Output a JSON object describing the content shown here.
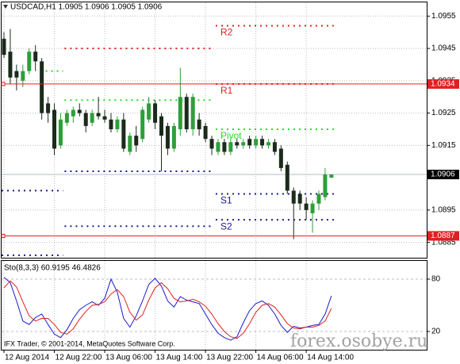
{
  "chart_data": [
    {
      "type": "candlestick",
      "title": "USDCAD,H1  1.0905 1.0906 1.0905 1.0906",
      "categories": [
        "12 Aug 2014",
        null,
        null,
        null,
        null,
        null,
        null,
        null,
        "12 Aug 22:00",
        null,
        null,
        null,
        null,
        null,
        null,
        null,
        "13 Aug 06:00",
        null,
        null,
        null,
        null,
        null,
        null,
        null,
        "13 Aug 14:00",
        null,
        null,
        null,
        null,
        null,
        null,
        null,
        "13 Aug 22:00",
        null,
        null,
        null,
        null,
        null,
        null,
        null,
        "14 Aug 06:00",
        null,
        null,
        null,
        null,
        null,
        null,
        null,
        "14 Aug 14:00",
        null,
        null,
        null,
        null
      ],
      "open": [
        1.0948,
        1.0944,
        1.0938,
        1.0935,
        1.0938,
        1.0944,
        1.0941,
        1.0928,
        1.0926,
        1.0915,
        1.0922,
        1.0924,
        1.0926,
        1.0925,
        1.0922,
        1.0925,
        1.0924,
        1.0923,
        1.092,
        1.0923,
        1.0913,
        1.0918,
        1.0917,
        1.0923,
        1.0928,
        1.0924,
        1.0921,
        1.0914,
        1.092,
        1.093,
        1.092,
        1.0923,
        1.0921,
        1.0917,
        1.0913,
        1.0916,
        1.0913,
        1.0916,
        1.0915,
        1.0917,
        1.0915,
        1.0917,
        1.0915,
        1.0916,
        1.0914,
        1.0909,
        1.0901,
        1.09,
        1.0897,
        1.0894,
        1.0897,
        1.0899,
        1.0905
      ],
      "high": [
        1.095,
        1.0951,
        1.094,
        1.094,
        1.0945,
        1.0946,
        1.0942,
        1.093,
        1.0928,
        1.0925,
        1.0926,
        1.0927,
        1.0928,
        1.0926,
        1.0926,
        1.093,
        1.0926,
        1.0925,
        1.0924,
        1.0925,
        1.0919,
        1.0921,
        1.0927,
        1.093,
        1.0929,
        1.0925,
        1.0922,
        1.0922,
        1.0939,
        1.0931,
        1.0931,
        1.0925,
        1.0922,
        1.0918,
        1.0917,
        1.0917,
        1.0917,
        1.0917,
        1.0917,
        1.0918,
        1.0918,
        1.0918,
        1.0917,
        1.0917,
        1.0915,
        1.091,
        1.0902,
        1.0901,
        1.0899,
        1.0898,
        1.0901,
        1.0908,
        1.0906
      ],
      "low": [
        1.0942,
        1.0934,
        1.0932,
        1.0933,
        1.0937,
        1.0938,
        1.0923,
        1.0922,
        1.0912,
        1.0914,
        1.0921,
        1.0922,
        1.0924,
        1.0919,
        1.0921,
        1.0923,
        1.0922,
        1.0919,
        1.0919,
        1.0913,
        1.0912,
        1.0913,
        1.0916,
        1.0922,
        1.092,
        1.0907,
        1.0912,
        1.0913,
        1.0918,
        1.0919,
        1.0918,
        1.0918,
        1.0916,
        1.0912,
        1.0912,
        1.0912,
        1.0912,
        1.0914,
        1.0914,
        1.0914,
        1.0914,
        1.0914,
        1.0914,
        1.0912,
        1.0907,
        1.09,
        1.0886,
        1.0895,
        1.0892,
        1.0888,
        1.0895,
        1.0898,
        1.0905
      ],
      "close": [
        1.0943,
        1.0936,
        1.0936,
        1.0938,
        1.0944,
        1.0941,
        1.0925,
        1.0925,
        1.0914,
        1.0923,
        1.0925,
        1.0926,
        1.0925,
        1.0921,
        1.0925,
        1.0924,
        1.0923,
        1.092,
        1.0923,
        1.0914,
        1.0918,
        1.0915,
        1.0926,
        1.0928,
        1.0922,
        1.0918,
        1.0914,
        1.0921,
        1.093,
        1.092,
        1.093,
        1.092,
        1.0917,
        1.0914,
        1.0916,
        1.0913,
        1.0916,
        1.0915,
        1.0916,
        1.0915,
        1.0917,
        1.0915,
        1.0916,
        1.0913,
        1.0908,
        1.0901,
        1.0897,
        1.0897,
        1.0895,
        1.0897,
        1.09,
        1.0906,
        1.0906
      ],
      "up_color": "#2f9e3a",
      "down_color": "#1b2b1b",
      "ylim": [
        1.088,
        1.0959
      ],
      "yticks": [
        1.0955,
        1.0945,
        1.0935,
        1.0925,
        1.0915,
        1.0895,
        1.0885
      ],
      "grid": true,
      "hlines": [
        {
          "value": 1.0934,
          "color": "#e02020"
        },
        {
          "value": 1.0887,
          "color": "#e02020"
        }
      ],
      "current": {
        "value": 1.0906,
        "color": "#b0b8c8"
      },
      "pivots": [
        {
          "value": 1.0938,
          "color": "#22dd22",
          "start": 7,
          "end": 9
        },
        {
          "value": 1.0901,
          "color": "#1a1a90",
          "start": 0,
          "end": 9
        },
        {
          "value": 1.0881,
          "color": "#1a1a90",
          "start": 0,
          "end": 9
        },
        {
          "value": 1.0945,
          "color": "#e02020",
          "start": 10,
          "end": 33
        },
        {
          "value": 1.0929,
          "color": "#22dd22",
          "start": 10,
          "end": 33
        },
        {
          "value": 1.0907,
          "color": "#1a1a90",
          "start": 10,
          "end": 33
        },
        {
          "value": 1.089,
          "color": "#1a1a90",
          "start": 10,
          "end": 33
        },
        {
          "name": "R2",
          "value": 1.0952,
          "color": "#e02020",
          "start": 34,
          "end": 52
        },
        {
          "name": "R1",
          "value": 1.0934,
          "color": "#e02020",
          "start": 34,
          "end": 52
        },
        {
          "name": "Pivot",
          "value": 1.092,
          "color": "#22dd22",
          "start": 34,
          "end": 52
        },
        {
          "name": "S1",
          "value": 1.09,
          "color": "#1a1a90",
          "start": 34,
          "end": 52
        },
        {
          "name": "S2",
          "value": 1.0892,
          "color": "#1a1a90",
          "start": 34,
          "end": 52
        }
      ]
    },
    {
      "type": "line",
      "title": "Sto(8,3,3) 60.9195 46.4826",
      "ylim": [
        0,
        100
      ],
      "yticks": [
        80,
        20
      ],
      "series": [
        {
          "color": "#1a1ad0",
          "values": [
            82,
            76,
            55,
            32,
            28,
            36,
            40,
            28,
            17,
            13,
            22,
            35,
            45,
            50,
            54,
            50,
            58,
            80,
            65,
            35,
            25,
            38,
            55,
            74,
            81,
            72,
            55,
            48,
            60,
            56,
            54,
            52,
            40,
            28,
            18,
            13,
            10,
            14,
            30,
            44,
            52,
            55,
            50,
            40,
            27,
            19,
            26,
            24,
            25,
            27,
            28,
            40,
            60.9195
          ]
        },
        {
          "color": "#e02020",
          "values": [
            70,
            78,
            71,
            54,
            38,
            32,
            35,
            35,
            28,
            19,
            17,
            23,
            34,
            43,
            50,
            51,
            54,
            63,
            68,
            60,
            42,
            33,
            39,
            56,
            70,
            76,
            69,
            58,
            54,
            55,
            57,
            54,
            49,
            40,
            29,
            20,
            14,
            12,
            18,
            29,
            42,
            50,
            52,
            48,
            39,
            29,
            24,
            23,
            25,
            25,
            27,
            32,
            46.4826
          ]
        }
      ]
    }
  ],
  "copyright": "IFX Trader, © 2001-2014, MetaQuotes Software Corp.",
  "watermark": "forex.osobye.ru"
}
